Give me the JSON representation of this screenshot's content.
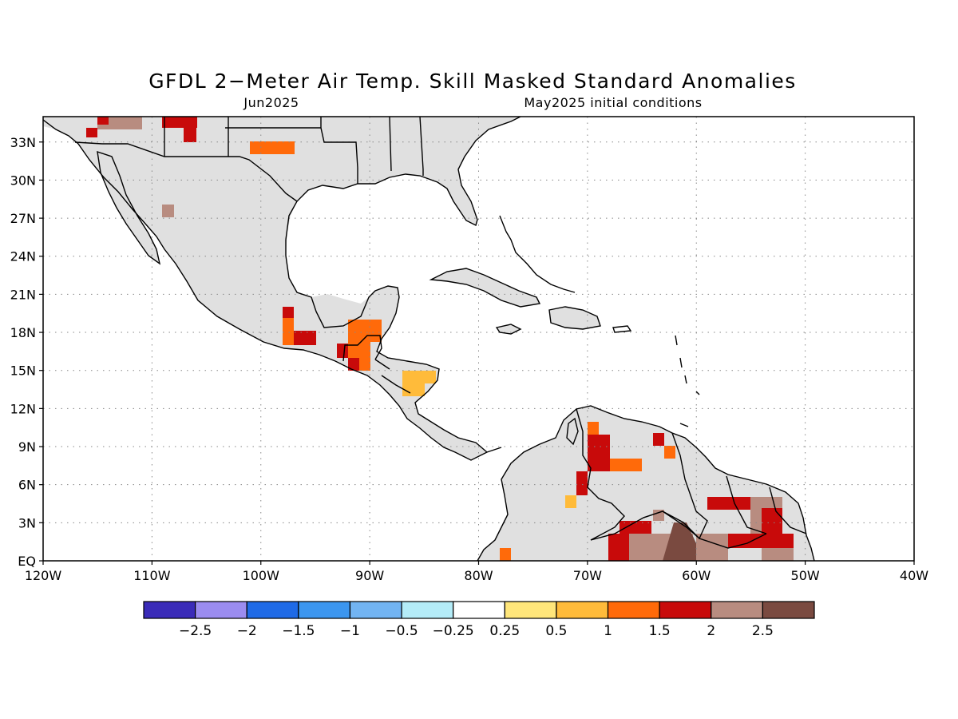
{
  "title": "GFDL 2−Meter Air Temp. Skill Masked Standard Anomalies",
  "subtitle_left": "Jun2025",
  "subtitle_right": "May2025 initial conditions",
  "lat_labels": [
    "33N",
    "30N",
    "27N",
    "24N",
    "21N",
    "18N",
    "15N",
    "12N",
    "9N",
    "6N",
    "3N",
    "EQ"
  ],
  "lat_values": [
    33,
    30,
    27,
    24,
    21,
    18,
    15,
    12,
    9,
    6,
    3,
    0
  ],
  "lon_labels": [
    "120W",
    "110W",
    "100W",
    "90W",
    "80W",
    "70W",
    "60W",
    "50W",
    "40W"
  ],
  "lon_values": [
    -120,
    -110,
    -100,
    -90,
    -80,
    -70,
    -60,
    -50,
    -40
  ],
  "extent": {
    "lon_min": -120,
    "lon_max": -40,
    "lat_min": 0,
    "lat_max": 35
  },
  "colorbar": {
    "colors": [
      "#3a2bb8",
      "#9b8cf0",
      "#1f6ae6",
      "#3c96ef",
      "#72b4f2",
      "#b4ecf8",
      "#ffffff",
      "#ffe67a",
      "#ffbb3a",
      "#ff6a0a",
      "#c80a0a",
      "#b88c80",
      "#7a4a40"
    ],
    "labels": [
      "−2.5",
      "−2",
      "−1.5",
      "−1",
      "−0.5",
      "−0.25",
      "0.25",
      "0.5",
      "1",
      "1.5",
      "2",
      "2.5"
    ]
  },
  "colors": {
    "land_masked": "#e0e0e0",
    "ocean": "#ffffff",
    "coast": "#000000",
    "grid": "#888888"
  }
}
